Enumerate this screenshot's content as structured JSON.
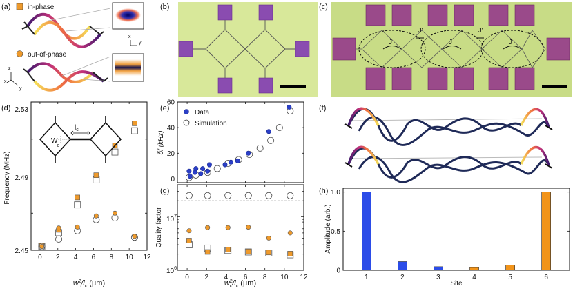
{
  "panel_labels": {
    "a": "(a)",
    "b": "(b)",
    "c": "(c)",
    "d": "(d)",
    "e": "(e)",
    "f": "(f)",
    "g": "(g)",
    "h": "(h)"
  },
  "panel_a": {
    "legend_in_phase": "in-phase",
    "legend_out_of_phase": "out-of-phase",
    "axes_top": {
      "x": "x",
      "y": "y"
    },
    "axes_bottom": {
      "z": "z",
      "x": "x",
      "y": "y"
    },
    "colors": {
      "in_phase": "#e8902a",
      "out_of_phase": "#f0a030"
    }
  },
  "panel_c": {
    "coupling_J": "J",
    "coupling_Jprime": "J'"
  },
  "panel_d_inset": {
    "lc": "l",
    "lc_sub": "c",
    "wc": "W",
    "wc_sub": "c"
  },
  "chart_data": [
    {
      "id": "d",
      "type": "scatter",
      "ylabel": "Frequency (MHz)",
      "xlabel": "w_c^2/l_c (µm)",
      "xlim": [
        -1,
        12
      ],
      "ylim": [
        2.45,
        2.53
      ],
      "xticks": [
        "0",
        "2",
        "4",
        "6",
        "8",
        "10",
        "12"
      ],
      "yticks": [
        "2.45",
        "2.49",
        "2.53"
      ],
      "series": [
        {
          "name": "in-phase",
          "marker": "square-filled",
          "color": "#ee9a2c",
          "x": [
            0.2,
            2.1,
            4.2,
            6.3,
            8.4,
            10.6
          ],
          "y": [
            2.4525,
            2.461,
            2.4785,
            2.4905,
            2.5065,
            2.5185
          ]
        },
        {
          "name": "in-phase simulation",
          "marker": "square-open",
          "x": [
            0.2,
            2.1,
            4.2,
            6.3,
            8.4,
            10.6
          ],
          "y": [
            2.452,
            2.4595,
            2.4745,
            2.488,
            2.503,
            2.5145
          ]
        },
        {
          "name": "out-of-phase",
          "marker": "circle-filled",
          "color": "#ee9a2c",
          "x": [
            0.2,
            2.1,
            4.2,
            6.3,
            8.4,
            10.6
          ],
          "y": [
            2.452,
            2.462,
            2.4625,
            2.4685,
            2.47,
            2.4575
          ]
        },
        {
          "name": "out-of-phase simulation",
          "marker": "circle-open",
          "x": [
            0.2,
            2.1,
            4.2,
            6.3,
            8.4,
            10.6
          ],
          "y": [
            2.452,
            2.456,
            2.4605,
            2.4665,
            2.4675,
            2.457
          ]
        }
      ]
    },
    {
      "id": "e",
      "type": "scatter",
      "ylabel": "δf (kHz)",
      "xlim": [
        -1,
        12
      ],
      "ylim": [
        -3,
        60
      ],
      "yticks": [
        "0",
        "20",
        "40",
        "60"
      ],
      "legend": [
        "Data",
        "Simulation"
      ],
      "series": [
        {
          "name": "Data",
          "marker": "circle-filled",
          "color": "#2b3fc8",
          "x": [
            0.2,
            0.3,
            0.8,
            0.9,
            1.4,
            1.6,
            2.1,
            2.3,
            3.9,
            4.5,
            5.2,
            6.3,
            8.4,
            10.5
          ],
          "y": [
            6,
            2,
            5,
            8,
            4,
            8,
            6,
            11,
            11,
            13,
            14,
            20,
            37,
            56
          ]
        },
        {
          "name": "Simulation",
          "marker": "circle-open",
          "x": [
            0.2,
            0.9,
            2.1,
            3.1,
            4.2,
            5.3,
            6.4,
            7.5,
            8.6,
            9.5,
            10.6
          ],
          "y": [
            1,
            3,
            5,
            8,
            12,
            15,
            19,
            24,
            30,
            40,
            53
          ]
        }
      ]
    },
    {
      "id": "g",
      "type": "scatter",
      "ylabel": "Quality factor",
      "xlabel": "w_c^2/l_c (µm)",
      "yscale": "log",
      "ylim": [
        1000000,
        40000000
      ],
      "xticks": [
        "0",
        "2",
        "4",
        "6",
        "8",
        "10",
        "12"
      ],
      "ytick_base": "10",
      "ytick_exponents": [
        "6",
        "7"
      ],
      "dashed_line_y": 20000000,
      "series": [
        {
          "name": "Simulation",
          "marker": "circle-open",
          "x": [
            0.2,
            2.1,
            4.2,
            6.3,
            8.4,
            10.6
          ],
          "y": [
            25000000,
            25000000,
            25000000,
            25000000,
            25000000,
            25000000
          ]
        },
        {
          "name": "out-of-phase",
          "marker": "circle-filled",
          "color": "#ee9a2c",
          "x": [
            0.2,
            2.1,
            4.2,
            6.3,
            8.4,
            10.6
          ],
          "y": [
            5500000,
            6300000,
            6300000,
            6400000,
            4000000,
            5000000
          ]
        },
        {
          "name": "in-phase",
          "marker": "square-filled",
          "color": "#ee9a2c",
          "x": [
            0.2,
            2.1,
            4.2,
            6.3,
            8.4,
            10.6
          ],
          "y": [
            3600000,
            2200000,
            2450000,
            2250000,
            2150000,
            2050000
          ]
        },
        {
          "name": "in-phase simulation",
          "marker": "square-open",
          "x": [
            0.2,
            2.1,
            4.2,
            6.3,
            8.4,
            10.6
          ],
          "y": [
            3000000,
            2600000,
            2350000,
            2200000,
            2100000,
            1950000
          ]
        }
      ]
    },
    {
      "id": "h",
      "type": "bar",
      "ylabel": "Amplitude (arb.)",
      "xlabel": "Site",
      "categories": [
        "1",
        "2",
        "3",
        "4",
        "5",
        "6"
      ],
      "values": [
        1.0,
        0.11,
        0.045,
        0.035,
        0.065,
        1.0
      ],
      "colors": [
        "#2b4ce8",
        "#2b4ce8",
        "#2b4ce8",
        "#f2941a",
        "#f2941a",
        "#f2941a"
      ],
      "ylim": [
        0,
        1.05
      ],
      "yticks": [
        "0",
        "0.5",
        "1.0"
      ]
    }
  ]
}
